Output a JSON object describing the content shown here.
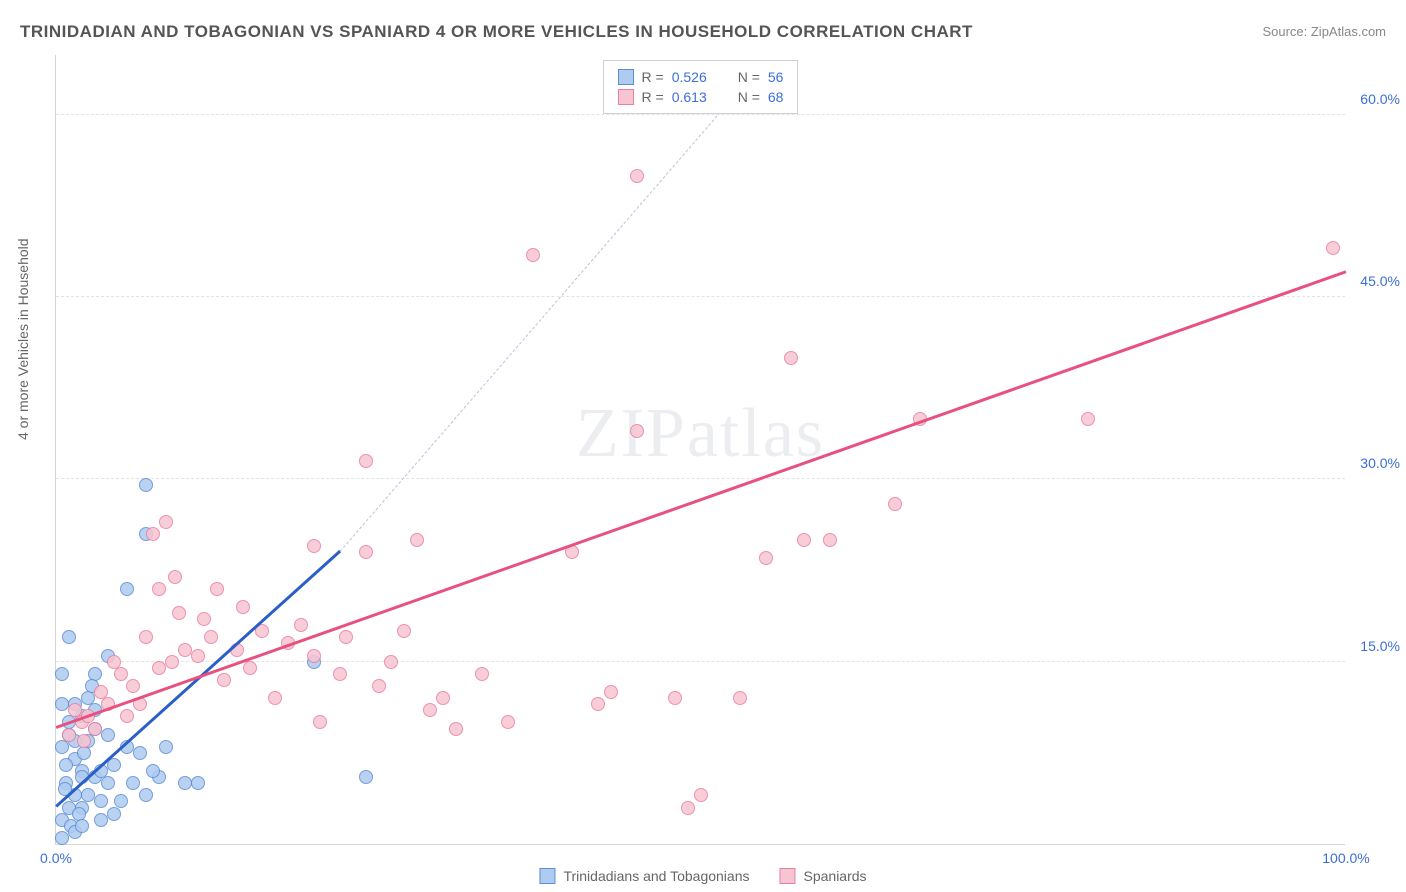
{
  "title": "TRINIDADIAN AND TOBAGONIAN VS SPANIARD 4 OR MORE VEHICLES IN HOUSEHOLD CORRELATION CHART",
  "source": "Source: ZipAtlas.com",
  "ylabel": "4 or more Vehicles in Household",
  "watermark": "ZIPatlas",
  "chart": {
    "xlim": [
      0,
      100
    ],
    "ylim": [
      0,
      65
    ],
    "xtick_labels": [
      "0.0%",
      "100.0%"
    ],
    "xtick_vals": [
      0,
      100
    ],
    "ytick_labels": [
      "15.0%",
      "30.0%",
      "45.0%",
      "60.0%"
    ],
    "ytick_vals": [
      15,
      30,
      45,
      60
    ],
    "grid_color": "#e3e3e3",
    "axis_color": "#d5d5d5",
    "background": "#ffffff"
  },
  "series": [
    {
      "name": "Trinidadians and Tobagonians",
      "fill": "#aecbf0",
      "stroke": "#5b8ed6",
      "r_label": "R =",
      "r_value": "0.526",
      "n_label": "N =",
      "n_value": "56",
      "trend": {
        "x1": 0,
        "y1": 3,
        "x2": 22,
        "y2": 24,
        "color": "#2a5fc7",
        "width": 2.5,
        "dashed": false
      },
      "dashed_extension": {
        "x1": 22,
        "y1": 24,
        "x2": 53,
        "y2": 62,
        "color": "#b8c4d8"
      },
      "points": [
        [
          0.5,
          2
        ],
        [
          1,
          3
        ],
        [
          1.5,
          4
        ],
        [
          0.8,
          5
        ],
        [
          1.2,
          1.5
        ],
        [
          2,
          6
        ],
        [
          1.5,
          7
        ],
        [
          2.5,
          4
        ],
        [
          3,
          5.5
        ],
        [
          0.5,
          8
        ],
        [
          1,
          9
        ],
        [
          2,
          3
        ],
        [
          3.5,
          6
        ],
        [
          1.8,
          2.5
        ],
        [
          0.7,
          4.5
        ],
        [
          2.2,
          7.5
        ],
        [
          4,
          5
        ],
        [
          1,
          10
        ],
        [
          2.5,
          8.5
        ],
        [
          3,
          9.5
        ],
        [
          0.5,
          0.5
        ],
        [
          1.5,
          1
        ],
        [
          2,
          1.5
        ],
        [
          3.5,
          2
        ],
        [
          4.5,
          6.5
        ],
        [
          5,
          3.5
        ],
        [
          6,
          5
        ],
        [
          7,
          4
        ],
        [
          8,
          5.5
        ],
        [
          6.5,
          7.5
        ],
        [
          2,
          10.5
        ],
        [
          1.5,
          11.5
        ],
        [
          0.8,
          6.5
        ],
        [
          3,
          11
        ],
        [
          4,
          9
        ],
        [
          5.5,
          8
        ],
        [
          2.5,
          12
        ],
        [
          7.5,
          6
        ],
        [
          8.5,
          8
        ],
        [
          10,
          5
        ],
        [
          11,
          5
        ],
        [
          1,
          17
        ],
        [
          7,
          25.5
        ],
        [
          7,
          29.5
        ],
        [
          5.5,
          21
        ],
        [
          3,
          14
        ],
        [
          4,
          15.5
        ],
        [
          24,
          5.5
        ],
        [
          20,
          15
        ],
        [
          0.5,
          11.5
        ],
        [
          2.8,
          13
        ],
        [
          1.5,
          8.5
        ],
        [
          3.5,
          3.5
        ],
        [
          4.5,
          2.5
        ],
        [
          2,
          5.5
        ],
        [
          0.5,
          14
        ]
      ]
    },
    {
      "name": "Spaniards",
      "fill": "#f7c5d2",
      "stroke": "#e77fa3",
      "r_label": "R =",
      "r_value": "0.613",
      "n_label": "N =",
      "n_value": "68",
      "trend": {
        "x1": 0,
        "y1": 9.5,
        "x2": 100,
        "y2": 47,
        "color": "#e8517f",
        "width": 2.5,
        "dashed": false
      },
      "points": [
        [
          1,
          9
        ],
        [
          2,
          10
        ],
        [
          3,
          9.5
        ],
        [
          1.5,
          11
        ],
        [
          2.5,
          10.5
        ],
        [
          4,
          11.5
        ],
        [
          5,
          14
        ],
        [
          4.5,
          15
        ],
        [
          6,
          13
        ],
        [
          7,
          17
        ],
        [
          8,
          14.5
        ],
        [
          9,
          15
        ],
        [
          10,
          16
        ],
        [
          7.5,
          25.5
        ],
        [
          8,
          21
        ],
        [
          9.5,
          19
        ],
        [
          11,
          15.5
        ],
        [
          12,
          17
        ],
        [
          13,
          13.5
        ],
        [
          14,
          16
        ],
        [
          15,
          14.5
        ],
        [
          16,
          17.5
        ],
        [
          18,
          16.5
        ],
        [
          19,
          18
        ],
        [
          20,
          15.5
        ],
        [
          22,
          14
        ],
        [
          24,
          24
        ],
        [
          26,
          15
        ],
        [
          27,
          17.5
        ],
        [
          24,
          31.5
        ],
        [
          29,
          11
        ],
        [
          30,
          12
        ],
        [
          31,
          9.5
        ],
        [
          33,
          14
        ],
        [
          35,
          10
        ],
        [
          40,
          24
        ],
        [
          42,
          11.5
        ],
        [
          43,
          12.5
        ],
        [
          45,
          34
        ],
        [
          37,
          48.5
        ],
        [
          49,
          3
        ],
        [
          48,
          12
        ],
        [
          50,
          4
        ],
        [
          53,
          12
        ],
        [
          55,
          23.5
        ],
        [
          57,
          40
        ],
        [
          58,
          25
        ],
        [
          60,
          25
        ],
        [
          65,
          28
        ],
        [
          67,
          35
        ],
        [
          80,
          35
        ],
        [
          99,
          49
        ],
        [
          45,
          55
        ],
        [
          8.5,
          26.5
        ],
        [
          9.2,
          22
        ],
        [
          11.5,
          18.5
        ],
        [
          12.5,
          21
        ],
        [
          14.5,
          19.5
        ],
        [
          17,
          12
        ],
        [
          20,
          24.5
        ],
        [
          22.5,
          17
        ],
        [
          25,
          13
        ],
        [
          28,
          25
        ],
        [
          20.5,
          10
        ],
        [
          5.5,
          10.5
        ],
        [
          6.5,
          11.5
        ],
        [
          3.5,
          12.5
        ],
        [
          2.2,
          8.5
        ]
      ]
    }
  ],
  "bottom_legend": [
    {
      "label": "Trinidadians and Tobagonians",
      "fill": "#aecbf0",
      "stroke": "#5b8ed6"
    },
    {
      "label": "Spaniards",
      "fill": "#f7c5d2",
      "stroke": "#e77fa3"
    }
  ]
}
